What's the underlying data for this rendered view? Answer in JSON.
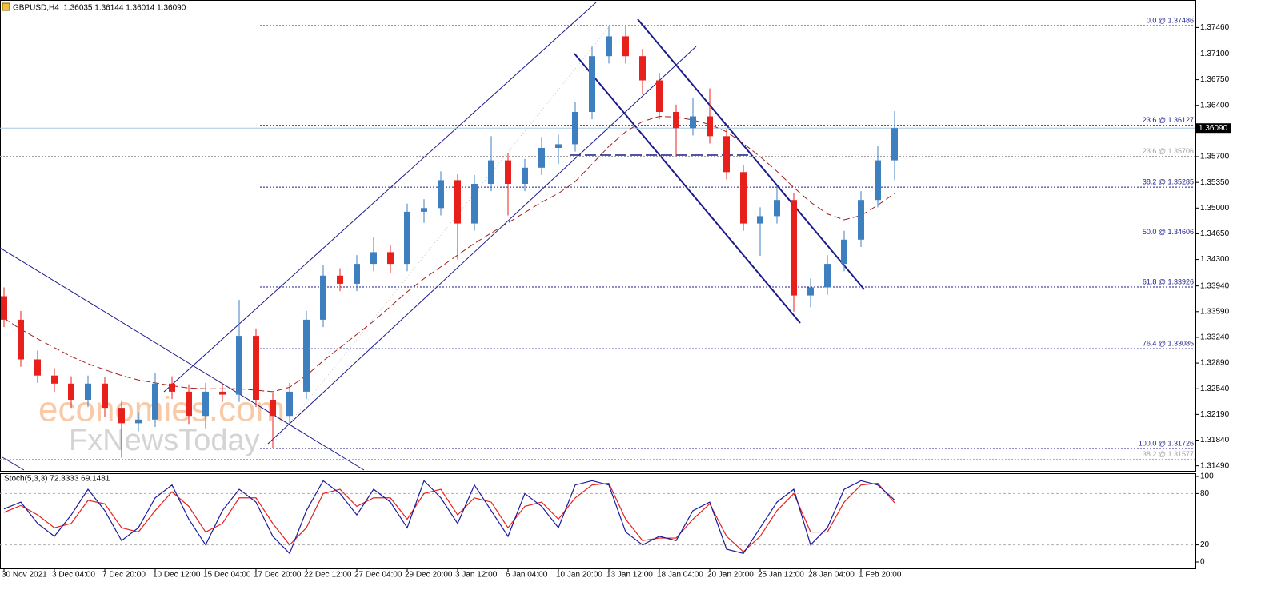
{
  "chart_data": {
    "type": "candlestick",
    "title": "GBPUSD,H4  1.36035 1.36144 1.36014 1.36090",
    "categories": [
      "30 Nov 2021",
      null,
      null,
      "3 Dec 04:00",
      null,
      null,
      "7 Dec 20:00",
      null,
      null,
      "10 Dec 12:00",
      null,
      null,
      "15 Dec 04:00",
      null,
      null,
      "17 Dec 20:00",
      null,
      null,
      "22 Dec 12:00",
      null,
      null,
      "27 Dec 04:00",
      null,
      null,
      "29 Dec 20:00",
      null,
      null,
      "3 Jan 12:00",
      null,
      null,
      "6 Jan 04:00",
      null,
      null,
      "10 Jan 20:00",
      null,
      null,
      "13 Jan 12:00",
      null,
      null,
      "18 Jan 04:00",
      null,
      null,
      "20 Jan 20:00",
      null,
      null,
      "25 Jan 12:00",
      null,
      null,
      "28 Jan 04:00",
      null,
      null,
      "1 Feb 20:00",
      null,
      null
    ],
    "open": [
      1.338,
      1.3348,
      1.3294,
      1.3272,
      1.3261,
      1.3239,
      1.3261,
      1.3228,
      1.3207,
      1.3212,
      1.3261,
      1.325,
      1.3217,
      1.325,
      1.3246,
      1.3326,
      1.3239,
      1.3217,
      1.325,
      1.3348,
      1.3408,
      1.3397,
      1.3424,
      1.344,
      1.3424,
      1.3495,
      1.35,
      1.3538,
      1.3479,
      1.3533,
      1.3565,
      1.3533,
      1.3555,
      1.3582,
      1.3587,
      1.3631,
      1.3707,
      1.3734,
      1.3707,
      1.3674,
      1.3631,
      1.3609,
      1.3625,
      1.3598,
      1.3549,
      1.3479,
      1.3489,
      1.3511,
      1.3381,
      1.3392,
      1.3424,
      1.3457,
      1.3511,
      1.3565
    ],
    "high": [
      1.3392,
      1.336,
      1.3306,
      1.3282,
      1.3271,
      1.3272,
      1.327,
      1.3238,
      1.3222,
      1.3276,
      1.3271,
      1.326,
      1.3262,
      1.3262,
      1.3375,
      1.3336,
      1.3249,
      1.3262,
      1.336,
      1.3422,
      1.3418,
      1.3436,
      1.346,
      1.345,
      1.3506,
      1.3512,
      1.355,
      1.3546,
      1.3545,
      1.3598,
      1.3575,
      1.3567,
      1.3597,
      1.36,
      1.3645,
      1.372,
      1.37486,
      1.3748,
      1.3717,
      1.3684,
      1.3641,
      1.365,
      1.3663,
      1.3608,
      1.3559,
      1.3501,
      1.353,
      1.3521,
      1.3404,
      1.3436,
      1.3469,
      1.3523,
      1.3584,
      1.3632
    ],
    "low": [
      1.3338,
      1.3284,
      1.3262,
      1.325,
      1.3228,
      1.3229,
      1.3216,
      1.316,
      1.3196,
      1.3202,
      1.324,
      1.3206,
      1.32,
      1.3236,
      1.3236,
      1.3229,
      1.31726,
      1.3207,
      1.324,
      1.3338,
      1.3387,
      1.3387,
      1.3414,
      1.3412,
      1.3414,
      1.348,
      1.349,
      1.343,
      1.3469,
      1.3523,
      1.349,
      1.3523,
      1.3545,
      1.356,
      1.3577,
      1.3621,
      1.3697,
      1.3697,
      1.3655,
      1.3621,
      1.3571,
      1.3599,
      1.3588,
      1.3539,
      1.3469,
      1.3435,
      1.3479,
      1.3359,
      1.3365,
      1.3382,
      1.3414,
      1.3447,
      1.3501,
      1.3538
    ],
    "close": [
      1.3348,
      1.3294,
      1.3272,
      1.3261,
      1.3239,
      1.3261,
      1.3228,
      1.3207,
      1.3212,
      1.3261,
      1.325,
      1.3217,
      1.325,
      1.3246,
      1.3326,
      1.3239,
      1.3217,
      1.325,
      1.3348,
      1.3408,
      1.3397,
      1.3424,
      1.344,
      1.3424,
      1.3495,
      1.35,
      1.3538,
      1.3479,
      1.3533,
      1.3565,
      1.3533,
      1.3555,
      1.3582,
      1.3587,
      1.3631,
      1.3707,
      1.3734,
      1.3707,
      1.3674,
      1.3631,
      1.3609,
      1.3625,
      1.3598,
      1.3549,
      1.3479,
      1.3489,
      1.3511,
      1.3381,
      1.3392,
      1.3424,
      1.3457,
      1.3511,
      1.3565,
      1.3609
    ],
    "up_color": "#3d7fbf",
    "down_color": "#e8201c",
    "ylim": [
      1.3141,
      1.3778
    ],
    "yticks": [
      {
        "value": 1.3746,
        "label": "1.37460"
      },
      {
        "value": 1.371,
        "label": "1.37100"
      },
      {
        "value": 1.3675,
        "label": "1.36750"
      },
      {
        "value": 1.364,
        "label": "1.36400"
      },
      {
        "value": 1.357,
        "label": "1.35700"
      },
      {
        "value": 1.3535,
        "label": "1.35350"
      },
      {
        "value": 1.35,
        "label": "1.35000"
      },
      {
        "value": 1.3465,
        "label": "1.34650"
      },
      {
        "value": 1.343,
        "label": "1.34300"
      },
      {
        "value": 1.3394,
        "label": "1.33940"
      },
      {
        "value": 1.3359,
        "label": "1.33590"
      },
      {
        "value": 1.3324,
        "label": "1.33240"
      },
      {
        "value": 1.3289,
        "label": "1.32890"
      },
      {
        "value": 1.3254,
        "label": "1.32540"
      },
      {
        "value": 1.3219,
        "label": "1.32190"
      },
      {
        "value": 1.3184,
        "label": "1.31840"
      },
      {
        "value": 1.3149,
        "label": "1.31490"
      }
    ],
    "current_price": {
      "value": 1.3609,
      "label": "1.36090"
    },
    "moving_average": {
      "color": "#a0201c",
      "values": [
        1.335,
        1.3335,
        1.3322,
        1.331,
        1.3298,
        1.3288,
        1.328,
        1.3272,
        1.3266,
        1.3262,
        1.3258,
        1.3255,
        1.3254,
        1.3254,
        1.3254,
        1.3252,
        1.325,
        1.3256,
        1.3272,
        1.3292,
        1.331,
        1.3328,
        1.3346,
        1.3366,
        1.3386,
        1.3404,
        1.342,
        1.3436,
        1.3452,
        1.3466,
        1.348,
        1.3494,
        1.3508,
        1.352,
        1.3536,
        1.356,
        1.3584,
        1.3604,
        1.3618,
        1.3625,
        1.3624,
        1.362,
        1.3614,
        1.3604,
        1.3588,
        1.357,
        1.355,
        1.3528,
        1.3508,
        1.3492,
        1.3484,
        1.349,
        1.3504,
        1.352
      ]
    },
    "fib_levels": [
      {
        "label": "0.0 @ 1.37486",
        "value": 1.37486,
        "color": "#1a1a8c",
        "full": false
      },
      {
        "label": "23.6 @ 1.36127",
        "value": 1.36127,
        "color": "#1a1a8c",
        "full": false
      },
      {
        "label": "23.6 @ 1.35706",
        "value": 1.35706,
        "color": "#a0a0a0",
        "full": true
      },
      {
        "label": "38.2 @ 1.35285",
        "value": 1.35285,
        "color": "#1a1a8c",
        "full": false
      },
      {
        "label": "50.0 @ 1.34606",
        "value": 1.34606,
        "color": "#1a1a8c",
        "full": false
      },
      {
        "label": "61.8 @ 1.33926",
        "value": 1.33926,
        "color": "#1a1a8c",
        "full": false
      },
      {
        "label": "76.4 @ 1.33085",
        "value": 1.33085,
        "color": "#1a1a8c",
        "full": false
      },
      {
        "label": "100.0 @ 1.31726",
        "value": 1.31726,
        "color": "#1a1a8c",
        "full": false
      },
      {
        "label": "38.2 @ 1.31577",
        "value": 1.31577,
        "color": "#a0a0a0",
        "full": true
      }
    ],
    "watermarks": [
      "economies.com",
      "FxNewsToday"
    ],
    "stochastic": {
      "title": "Stoch(5,3,3) 72.3333 69.1481",
      "ylim": [
        0,
        100
      ],
      "yticks": [
        0,
        20,
        80,
        100
      ],
      "levels": [
        20,
        80
      ],
      "main": {
        "color": "#1a1a9c",
        "values": [
          62,
          70,
          45,
          30,
          55,
          85,
          60,
          25,
          40,
          75,
          90,
          50,
          20,
          60,
          85,
          70,
          30,
          10,
          60,
          95,
          80,
          55,
          85,
          70,
          40,
          95,
          75,
          45,
          90,
          60,
          30,
          80,
          65,
          40,
          90,
          95,
          90,
          35,
          20,
          30,
          25,
          60,
          70,
          15,
          10,
          40,
          70,
          85,
          20,
          40,
          85,
          95,
          90,
          72.3333
        ]
      },
      "signal": {
        "color": "#e8201c",
        "values": [
          58,
          66,
          55,
          40,
          45,
          72,
          68,
          40,
          35,
          60,
          82,
          65,
          35,
          45,
          75,
          75,
          45,
          20,
          40,
          80,
          85,
          65,
          75,
          75,
          50,
          80,
          85,
          55,
          75,
          70,
          40,
          65,
          70,
          50,
          75,
          90,
          92,
          50,
          25,
          28,
          28,
          50,
          68,
          30,
          12,
          30,
          60,
          80,
          35,
          35,
          70,
          90,
          92,
          69.1481
        ]
      }
    }
  }
}
